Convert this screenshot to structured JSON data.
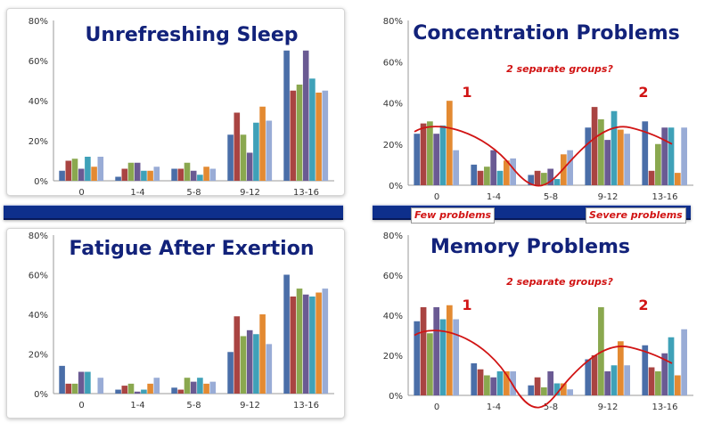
{
  "colors": {
    "title": "#12227a",
    "divider": "#0e2f8c",
    "annotation": "#d11414",
    "series": [
      "#4a6ea8",
      "#a94442",
      "#8aa84f",
      "#6a5a93",
      "#3fa1b8",
      "#e38a32",
      "#99acd6"
    ]
  },
  "callouts": {
    "few": "Few problems",
    "severe": "Severe problems"
  },
  "chart_data": [
    {
      "id": "unrefreshing-sleep",
      "type": "bar",
      "title": "Unrefreshing Sleep",
      "categories": [
        "0",
        "1-4",
        "5-8",
        "9-12",
        "13-16"
      ],
      "yticks": [
        "0%",
        "20%",
        "40%",
        "60%",
        "80%"
      ],
      "ylim": [
        0,
        80
      ],
      "series": [
        {
          "values": [
            5,
            2,
            6,
            23,
            65
          ]
        },
        {
          "values": [
            10,
            6,
            6,
            34,
            45
          ]
        },
        {
          "values": [
            11,
            9,
            9,
            23,
            48
          ]
        },
        {
          "values": [
            6,
            9,
            5,
            14,
            65
          ]
        },
        {
          "values": [
            12,
            5,
            3,
            29,
            51
          ]
        },
        {
          "values": [
            7,
            5,
            7,
            37,
            44
          ]
        },
        {
          "values": [
            12,
            7,
            6,
            30,
            45
          ]
        }
      ]
    },
    {
      "id": "concentration-problems",
      "type": "bar",
      "title": "Concentration Problems",
      "categories": [
        "0",
        "1-4",
        "5-8",
        "9-12",
        "13-16"
      ],
      "yticks": [
        "0%",
        "20%",
        "40%",
        "60%",
        "80%"
      ],
      "ylim": [
        0,
        80
      ],
      "series": [
        {
          "values": [
            25,
            10,
            5,
            28,
            31
          ]
        },
        {
          "values": [
            30,
            7,
            7,
            38,
            7
          ]
        },
        {
          "values": [
            31,
            9,
            6,
            32,
            20
          ]
        },
        {
          "values": [
            25,
            17,
            8,
            22,
            28
          ]
        },
        {
          "values": [
            29,
            7,
            3,
            36,
            28
          ]
        },
        {
          "values": [
            41,
            12,
            15,
            27,
            6
          ]
        },
        {
          "values": [
            17,
            13,
            17,
            25,
            28
          ]
        }
      ],
      "annotations": {
        "note": "2 separate groups?",
        "group1": "1",
        "group2": "2"
      }
    },
    {
      "id": "fatigue-after-exertion",
      "type": "bar",
      "title": "Fatigue After Exertion",
      "categories": [
        "0",
        "1-4",
        "5-8",
        "9-12",
        "13-16"
      ],
      "yticks": [
        "0%",
        "20%",
        "40%",
        "60%",
        "80%"
      ],
      "ylim": [
        0,
        80
      ],
      "series": [
        {
          "values": [
            14,
            2,
            3,
            21,
            60
          ]
        },
        {
          "values": [
            5,
            4,
            2,
            39,
            49
          ]
        },
        {
          "values": [
            5,
            5,
            8,
            29,
            53
          ]
        },
        {
          "values": [
            11,
            1,
            6,
            32,
            50
          ]
        },
        {
          "values": [
            11,
            2,
            8,
            30,
            49
          ]
        },
        {
          "values": [
            0,
            5,
            5,
            40,
            51
          ]
        },
        {
          "values": [
            8,
            8,
            6,
            25,
            53
          ]
        }
      ]
    },
    {
      "id": "memory-problems",
      "type": "bar",
      "title": "Memory Problems",
      "categories": [
        "0",
        "1-4",
        "5-8",
        "9-12",
        "13-16"
      ],
      "yticks": [
        "0%",
        "20%",
        "40%",
        "60%",
        "80%"
      ],
      "ylim": [
        0,
        80
      ],
      "series": [
        {
          "values": [
            37,
            16,
            5,
            18,
            25
          ]
        },
        {
          "values": [
            44,
            13,
            9,
            20,
            14
          ]
        },
        {
          "values": [
            31,
            10,
            4,
            44,
            12
          ]
        },
        {
          "values": [
            44,
            9,
            12,
            12,
            21
          ]
        },
        {
          "values": [
            38,
            12,
            6,
            15,
            29
          ]
        },
        {
          "values": [
            45,
            12,
            6,
            27,
            10
          ]
        },
        {
          "values": [
            38,
            12,
            3,
            15,
            33
          ]
        }
      ],
      "annotations": {
        "note": "2 separate groups?",
        "group1": "1",
        "group2": "2"
      }
    }
  ]
}
